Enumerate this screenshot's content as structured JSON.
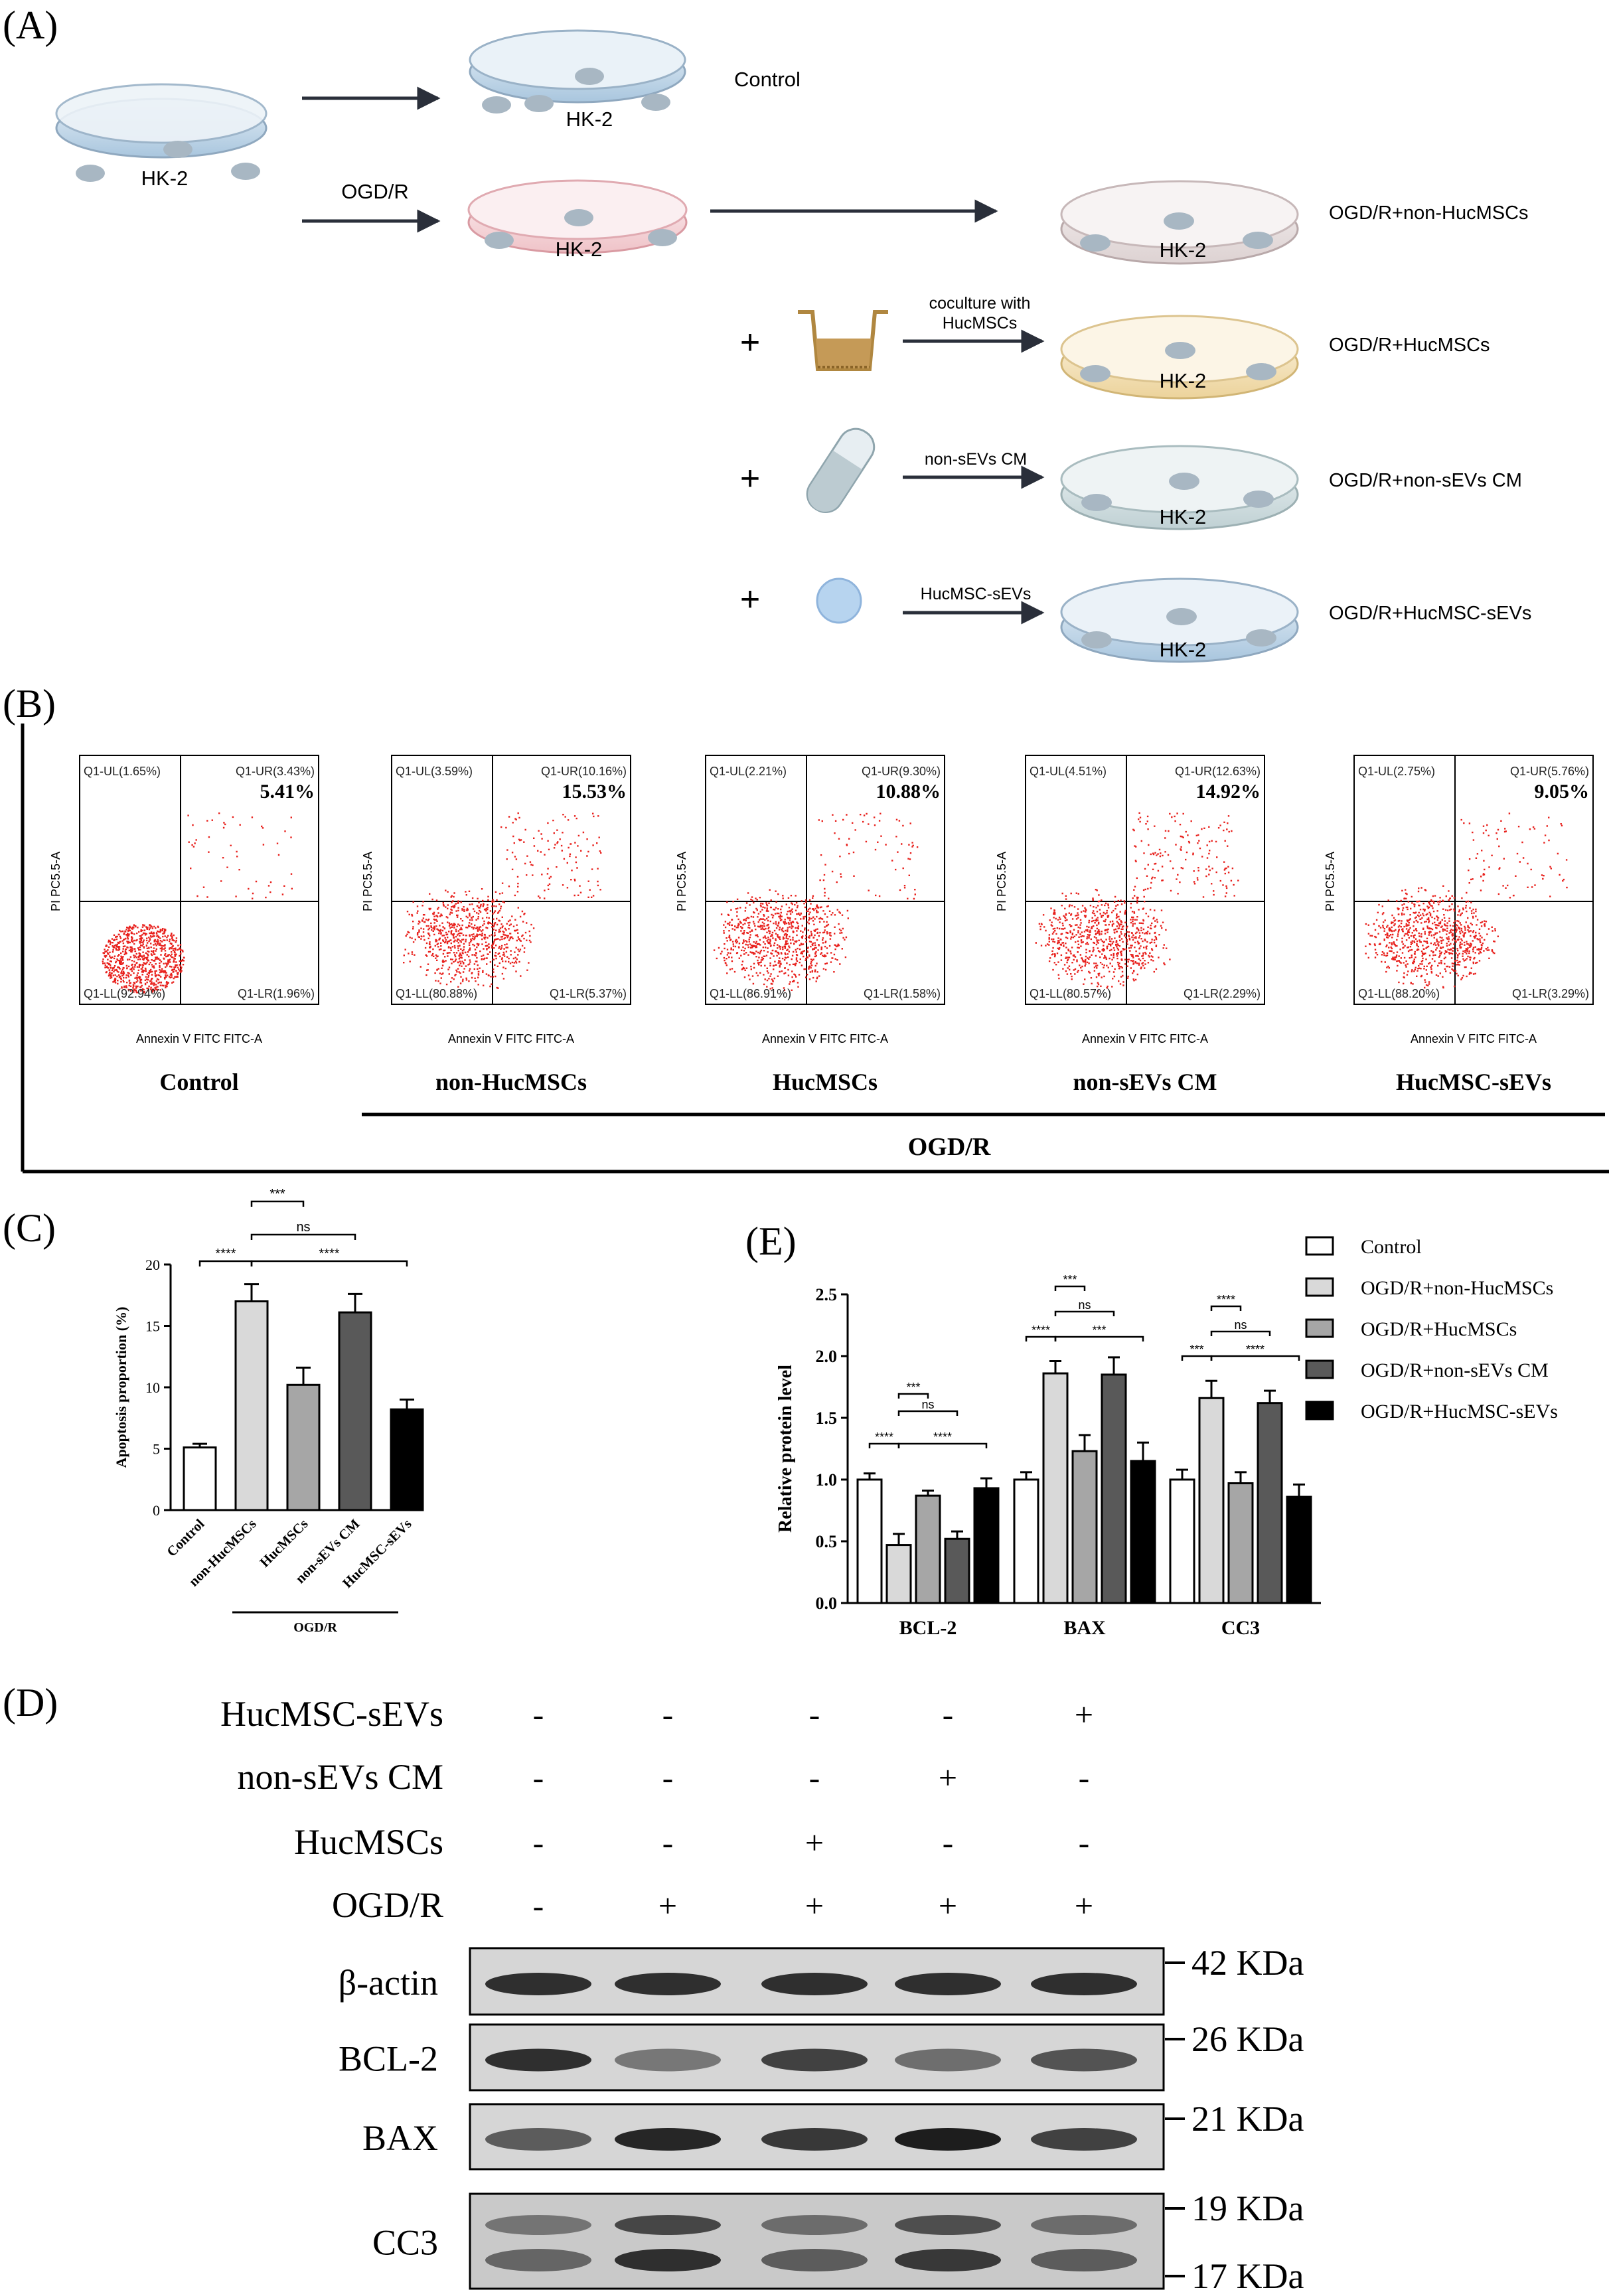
{
  "panel_labels": {
    "a": "(A)",
    "b": "(B)",
    "c": "(C)",
    "d": "(D)",
    "e": "(E)"
  },
  "panel_a": {
    "cell": "HK-2",
    "ogdr": "OGD/R",
    "control": "Control",
    "non_huc": "OGD/R+non-HucMSCs",
    "huc": "OGD/R+HucMSCs",
    "non_sevs": "OGD/R+non-sEVs CM",
    "sevs": "OGD/R+HucMSC-sEVs",
    "plus": "+",
    "coculture_1": "coculture with",
    "coculture_2": "HucMSCs",
    "non_sevs_cm": "non-sEVs CM",
    "huc_sevs": "HucMSC-sEVs"
  },
  "panel_b": {
    "xlabel": "Annexin V FITC FITC-A",
    "ylabel": "PI PC5.5-A",
    "group": "OGD/R",
    "plots": [
      {
        "name": "Control",
        "ul": "Q1-UL(1.65%)",
        "ur": "Q1-UR(3.43%)",
        "ll": "Q1-LL(92.94%)",
        "lr": "Q1-LR(1.96%)",
        "total": "5.41%"
      },
      {
        "name": "non-HucMSCs",
        "ul": "Q1-UL(3.59%)",
        "ur": "Q1-UR(10.16%)",
        "ll": "Q1-LL(80.88%)",
        "lr": "Q1-LR(5.37%)",
        "total": "15.53%"
      },
      {
        "name": "HucMSCs",
        "ul": "Q1-UL(2.21%)",
        "ur": "Q1-UR(9.30%)",
        "ll": "Q1-LL(86.91%)",
        "lr": "Q1-LR(1.58%)",
        "total": "10.88%"
      },
      {
        "name": "non-sEVs CM",
        "ul": "Q1-UL(4.51%)",
        "ur": "Q1-UR(12.63%)",
        "ll": "Q1-LL(80.57%)",
        "lr": "Q1-LR(2.29%)",
        "total": "14.92%"
      },
      {
        "name": "HucMSC-sEVs",
        "ul": "Q1-UL(2.75%)",
        "ur": "Q1-UR(5.76%)",
        "ll": "Q1-LL(88.20%)",
        "lr": "Q1-LR(3.29%)",
        "total": "9.05%"
      }
    ]
  },
  "chart_data": [
    {
      "type": "bar",
      "panel": "C",
      "ylabel": "Apoptosis proportion (%)",
      "ylim": [
        0,
        20
      ],
      "yticks": [
        "0",
        "5",
        "10",
        "15",
        "20"
      ],
      "categories": [
        "Control",
        "non-HucMSCs",
        "HucMSCs",
        "non-sEVs CM",
        "HucMSC-sEVs"
      ],
      "values": [
        5.1,
        17.0,
        10.2,
        16.1,
        8.2
      ],
      "errors": [
        0.3,
        1.4,
        1.4,
        1.5,
        0.8
      ],
      "colors": [
        "#ffffff",
        "#d9d9d9",
        "#a6a6a6",
        "#595959",
        "#000000"
      ],
      "group_label": "OGD/R",
      "significance": [
        {
          "label": "***",
          "from": 1,
          "to": 2
        },
        {
          "label": "ns",
          "from": 1,
          "to": 3
        },
        {
          "label": "****",
          "from": 0,
          "to": 1
        },
        {
          "label": "****",
          "from": 1,
          "to": 4
        }
      ]
    },
    {
      "type": "bar",
      "panel": "E",
      "ylabel": "Relative protein level",
      "ylim": [
        0,
        2.5
      ],
      "yticks": [
        "0.0",
        "0.5",
        "1.0",
        "1.5",
        "2.0",
        "2.5"
      ],
      "categories": [
        "BCL-2",
        "BAX",
        "CC3"
      ],
      "series": [
        {
          "name": "Control",
          "color": "#ffffff",
          "values": [
            1.0,
            1.0,
            1.0
          ],
          "errors": [
            0.05,
            0.06,
            0.08
          ]
        },
        {
          "name": "OGD/R+non-HucMSCs",
          "color": "#d9d9d9",
          "values": [
            0.47,
            1.86,
            1.66
          ],
          "errors": [
            0.09,
            0.1,
            0.14
          ]
        },
        {
          "name": "OGD/R+HucMSCs",
          "color": "#a6a6a6",
          "values": [
            0.87,
            1.23,
            0.97
          ],
          "errors": [
            0.04,
            0.13,
            0.09
          ]
        },
        {
          "name": "OGD/R+non-sEVs CM",
          "color": "#595959",
          "values": [
            0.52,
            1.85,
            1.62
          ],
          "errors": [
            0.06,
            0.14,
            0.1
          ]
        },
        {
          "name": "OGD/R+HucMSC-sEVs",
          "color": "#000000",
          "values": [
            0.93,
            1.15,
            0.86
          ],
          "errors": [
            0.08,
            0.15,
            0.1
          ]
        }
      ],
      "significance": [
        {
          "cat": 0,
          "label": "***",
          "from": 1,
          "to": 2
        },
        {
          "cat": 0,
          "label": "ns",
          "from": 1,
          "to": 3
        },
        {
          "cat": 0,
          "label": "****",
          "from": 0,
          "to": 1
        },
        {
          "cat": 0,
          "label": "****",
          "from": 1,
          "to": 4
        },
        {
          "cat": 1,
          "label": "***",
          "from": 1,
          "to": 2
        },
        {
          "cat": 1,
          "label": "ns",
          "from": 1,
          "to": 3
        },
        {
          "cat": 1,
          "label": "****",
          "from": 0,
          "to": 1
        },
        {
          "cat": 1,
          "label": "***",
          "from": 1,
          "to": 4
        },
        {
          "cat": 2,
          "label": "****",
          "from": 1,
          "to": 2
        },
        {
          "cat": 2,
          "label": "ns",
          "from": 1,
          "to": 3
        },
        {
          "cat": 2,
          "label": "***",
          "from": 0,
          "to": 1
        },
        {
          "cat": 2,
          "label": "****",
          "from": 1,
          "to": 4
        }
      ]
    }
  ],
  "panel_d": {
    "conditions": [
      {
        "label": "HucMSC-sEVs",
        "signs": [
          "-",
          "-",
          "-",
          "-",
          "+"
        ]
      },
      {
        "label": "non-sEVs CM",
        "signs": [
          "-",
          "-",
          "-",
          "+",
          "-"
        ]
      },
      {
        "label": "HucMSCs",
        "signs": [
          "-",
          "-",
          "+",
          "-",
          "-"
        ]
      },
      {
        "label": "OGD/R",
        "signs": [
          "-",
          "+",
          "+",
          "+",
          "+"
        ]
      }
    ],
    "blots": [
      {
        "label": "β-actin",
        "mw": [
          "42 KDa"
        ],
        "intensity": [
          0.85,
          0.85,
          0.85,
          0.85,
          0.85
        ]
      },
      {
        "label": "BCL-2",
        "mw": [
          "26 KDa"
        ],
        "intensity": [
          0.85,
          0.45,
          0.75,
          0.5,
          0.65
        ]
      },
      {
        "label": "BAX",
        "mw": [
          "21 KDa"
        ],
        "intensity": [
          0.6,
          0.9,
          0.8,
          0.95,
          0.75
        ]
      },
      {
        "label": "CC3",
        "mw": [
          "19 KDa",
          "17 KDa"
        ],
        "intensity": [
          0.55,
          0.85,
          0.6,
          0.8,
          0.6
        ]
      }
    ]
  }
}
